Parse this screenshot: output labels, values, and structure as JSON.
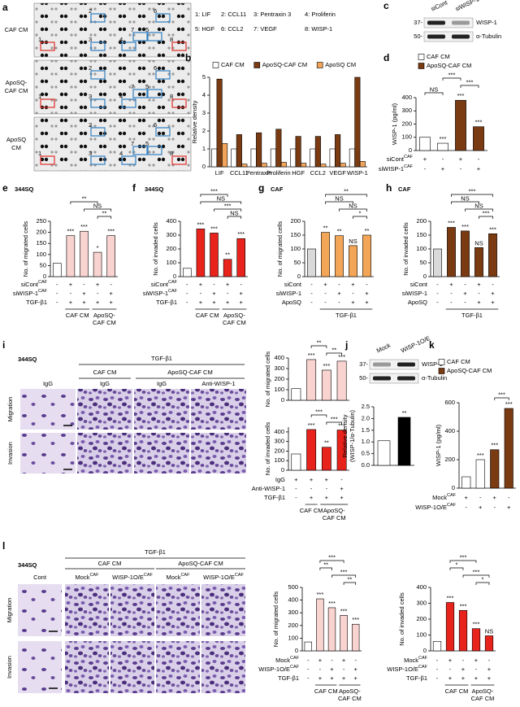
{
  "panel_a": {
    "letter": "a",
    "rows": [
      [
        "CAF CM"
      ],
      [
        "ApoSQ-",
        "CAF CM"
      ],
      [
        "ApoSQ",
        "CM"
      ]
    ],
    "legend": [
      "1: LIF",
      "2: CCL11",
      "3: Pentraxin 3",
      "4: Proliferin",
      "5: HGF",
      "6: CCL2",
      "7: VEGF",
      "8: WISP-1"
    ],
    "box_labels": [
      "1",
      "2",
      "3",
      "4",
      "5",
      "6",
      "7",
      "8"
    ]
  },
  "panel_c": {
    "letter": "c",
    "lanes": [
      "siCont",
      "siWISP-1"
    ],
    "markers": [
      "37-",
      "50-"
    ],
    "bands": [
      "WISP-1",
      "α-Tubulin"
    ]
  },
  "panel_i": {
    "letter": "i",
    "cell": "344SQ",
    "treatment": "TGF-β1",
    "groups": [
      "CAF CM",
      "ApoSQ-CAF CM"
    ],
    "columns": [
      "IgG",
      "IgG",
      "IgG",
      "Anti-WISP-1"
    ],
    "rows": [
      "Migration",
      "Invasion"
    ]
  },
  "panel_j": {
    "letter": "j",
    "lanes": [
      "Mock",
      "WISP-1O/E"
    ],
    "markers": [
      "37-",
      "50-"
    ],
    "bands": [
      "WISP-1",
      "α-Tubulin"
    ]
  },
  "panel_l": {
    "letter": "l",
    "cell": "344SQ",
    "treatment": "TGF-β1",
    "groups": [
      "CAF CM",
      "ApoSQ-CAF CM"
    ],
    "columns": [
      {
        "label": "Cont"
      },
      {
        "label": "Mock",
        "sup": "CAF"
      },
      {
        "label": "WISP-1O/E",
        "sup": "CAF"
      },
      {
        "label": "Mock",
        "sup": "CAF"
      },
      {
        "label": "WISP-1O/E",
        "sup": "CAF"
      }
    ],
    "rows": [
      "Migration",
      "Invasion"
    ]
  },
  "chart_data": [
    {
      "type": "bar",
      "panel": "b",
      "ylabel": "Relative density",
      "ylim": [
        0,
        5
      ],
      "yticks": [
        0,
        1,
        2,
        3,
        4,
        5
      ],
      "categories": [
        "LIF",
        "CCL11",
        "Pentraxin",
        "Proliferin",
        "HGF",
        "CCL2",
        "VEGF",
        "WISP-1"
      ],
      "series": [
        {
          "name": "CAF CM",
          "color": "#ffffff",
          "values": [
            1,
            1,
            1,
            1,
            1,
            1,
            1,
            1
          ]
        },
        {
          "name": "ApoSQ-CAF CM",
          "color": "#7a3b12",
          "values": [
            4.9,
            1.8,
            1.9,
            2.1,
            1.7,
            1.7,
            1.8,
            5.0
          ]
        },
        {
          "name": "ApoSQ CM",
          "color": "#f2a55a",
          "values": [
            1.3,
            0.15,
            0.2,
            0.25,
            0.2,
            0.15,
            0.2,
            0.3
          ]
        }
      ]
    },
    {
      "type": "bar",
      "panel": "d",
      "ylabel": "WISP-1 (pg/ml)",
      "ylim": [
        0,
        400
      ],
      "yticks": [
        0,
        100,
        200,
        300,
        400
      ],
      "values": [
        100,
        55,
        380,
        180
      ],
      "colors": [
        "#ffffff",
        "#ffffff",
        "#7a3b12",
        "#7a3b12"
      ],
      "legend": [
        {
          "name": "CAF CM",
          "color": "#ffffff"
        },
        {
          "name": "ApoSQ-CAF CM",
          "color": "#7a3b12"
        }
      ],
      "annotations": [
        null,
        "***",
        "***",
        "***"
      ],
      "brackets": [
        {
          "between": [
            0,
            1
          ],
          "label": "NS"
        },
        {
          "between": [
            2,
            3
          ],
          "label": "***"
        },
        {
          "between": [
            1,
            2
          ],
          "label": "***"
        }
      ],
      "rows": [
        {
          "label": "siCont",
          "sup": "CAF",
          "signs": [
            "+",
            "-",
            "+",
            "-"
          ]
        },
        {
          "label": "siWISP-1",
          "sup": "CAF",
          "signs": [
            "-",
            "+",
            "-",
            "+"
          ]
        }
      ]
    },
    {
      "type": "bar",
      "panel": "e",
      "title": "344SQ",
      "ylabel": "No. of migrated cells",
      "ylim": [
        0,
        250
      ],
      "yticks": [
        0,
        50,
        100,
        150,
        200,
        250
      ],
      "values": [
        60,
        185,
        205,
        110,
        185
      ],
      "colors": [
        "#ffffff",
        "#f9d3cf",
        "#f9d3cf",
        "#f9d3cf",
        "#f9d3cf"
      ],
      "annotations": [
        null,
        "***",
        "***",
        "*",
        "***"
      ],
      "brackets": [
        {
          "between": [
            3,
            4
          ],
          "label": "**"
        },
        {
          "between": [
            2,
            4
          ],
          "label": "NS"
        },
        {
          "between": [
            1,
            3
          ],
          "label": "**"
        }
      ],
      "rows": [
        {
          "label": "siCont",
          "sup": "CAF",
          "signs": [
            "-",
            "+",
            "-",
            "+",
            "-"
          ]
        },
        {
          "label": "siWISP-1",
          "sup": "CAF",
          "signs": [
            "-",
            "-",
            "+",
            "-",
            "+"
          ]
        },
        {
          "label": "TGF-β1",
          "signs": [
            "-",
            "+",
            "+",
            "+",
            "+"
          ]
        }
      ],
      "groups": [
        {
          "lines": [
            "CAF CM"
          ],
          "bars": [
            1,
            2
          ]
        },
        {
          "lines": [
            "ApoSQ-",
            "CAF CM"
          ],
          "bars": [
            3,
            4
          ]
        }
      ]
    },
    {
      "type": "bar",
      "panel": "f",
      "title": "344SQ",
      "ylabel": "No. of invaded cells",
      "ylim": [
        0,
        400
      ],
      "yticks": [
        0,
        100,
        200,
        300,
        400
      ],
      "values": [
        60,
        345,
        315,
        125,
        275
      ],
      "colors": [
        "#ffffff",
        "#e8231c",
        "#e8231c",
        "#e8231c",
        "#e8231c"
      ],
      "annotations": [
        null,
        "***",
        "***",
        "**",
        "***"
      ],
      "brackets": [
        {
          "between": [
            3,
            4
          ],
          "label": "NS"
        },
        {
          "between": [
            2,
            4
          ],
          "label": "***"
        },
        {
          "between": [
            1,
            4
          ],
          "label": "NS"
        },
        {
          "between": [
            1,
            3
          ],
          "label": "***"
        }
      ],
      "rows": [
        {
          "label": "siCont",
          "sup": "CAF",
          "signs": [
            "-",
            "+",
            "-",
            "+",
            "-"
          ]
        },
        {
          "label": "siWISP-1",
          "sup": "CAF",
          "signs": [
            "-",
            "-",
            "+",
            "-",
            "+"
          ]
        },
        {
          "label": "TGF-β1",
          "signs": [
            "-",
            "+",
            "+",
            "+",
            "+"
          ]
        }
      ],
      "groups": [
        {
          "lines": [
            "CAF CM"
          ],
          "bars": [
            1,
            2
          ]
        },
        {
          "lines": [
            "ApoSQ-",
            "CAF CM"
          ],
          "bars": [
            3,
            4
          ]
        }
      ]
    },
    {
      "type": "bar",
      "panel": "g",
      "title": "CAF",
      "ylabel": "No. of migrated cells",
      "ylim": [
        0,
        200
      ],
      "yticks": [
        0,
        50,
        100,
        150,
        200
      ],
      "values": [
        100,
        160,
        148,
        112,
        150
      ],
      "colors": [
        "#d9d9d9",
        "#f3a657",
        "#f3a657",
        "#f3a657",
        "#f3a657"
      ],
      "annotations": [
        null,
        "**",
        "**",
        "NS",
        "**"
      ],
      "brackets": [
        {
          "between": [
            3,
            4
          ],
          "label": "*"
        },
        {
          "between": [
            2,
            4
          ],
          "label": "NS"
        },
        {
          "between": [
            1,
            3
          ],
          "label": "NS"
        },
        {
          "between": [
            1,
            4
          ],
          "label": "**"
        }
      ],
      "rows": [
        {
          "label": "siCont",
          "signs": [
            "-",
            "+",
            "-",
            "+",
            "-"
          ]
        },
        {
          "label": "siWISP-1",
          "signs": [
            "-",
            "-",
            "+",
            "-",
            "+"
          ]
        },
        {
          "label": "ApoSQ",
          "signs": [
            "-",
            "-",
            "-",
            "+",
            "+"
          ]
        }
      ],
      "groups": [
        {
          "lines": [
            "TGF-β1"
          ],
          "bars": [
            1,
            4
          ]
        }
      ]
    },
    {
      "type": "bar",
      "panel": "h",
      "title": "CAF",
      "ylabel": "No. of invaded cells",
      "ylim": [
        0,
        200
      ],
      "yticks": [
        0,
        50,
        100,
        150,
        200
      ],
      "values": [
        100,
        178,
        165,
        105,
        155
      ],
      "colors": [
        "#d9d9d9",
        "#7a3b12",
        "#7a3b12",
        "#7a3b12",
        "#7a3b12"
      ],
      "annotations": [
        null,
        "***",
        "***",
        "NS",
        "***"
      ],
      "brackets": [
        {
          "between": [
            3,
            4
          ],
          "label": "***"
        },
        {
          "between": [
            2,
            4
          ],
          "label": "NS"
        },
        {
          "between": [
            1,
            3
          ],
          "label": "NS"
        },
        {
          "between": [
            1,
            4
          ],
          "label": "***"
        }
      ],
      "rows": [
        {
          "label": "siCont",
          "signs": [
            "-",
            "+",
            "-",
            "+",
            "-"
          ]
        },
        {
          "label": "siWISP-1",
          "signs": [
            "-",
            "-",
            "+",
            "-",
            "+"
          ]
        },
        {
          "label": "ApoSQ",
          "signs": [
            "-",
            "-",
            "-",
            "+",
            "+"
          ]
        }
      ],
      "groups": [
        {
          "lines": [
            "TGF-β1"
          ],
          "bars": [
            1,
            4
          ]
        }
      ]
    },
    {
      "type": "bar",
      "ylabel": "No. of migrated cells",
      "ylim": [
        0,
        400
      ],
      "yticks": [
        0,
        100,
        200,
        300,
        400
      ],
      "values": [
        110,
        385,
        285,
        370
      ],
      "colors": [
        "#ffffff",
        "#f9d3cf",
        "#f9d3cf",
        "#f9d3cf"
      ],
      "annotations": [
        null,
        "***",
        "***",
        "***"
      ],
      "brackets": [
        {
          "between": [
            2,
            3
          ],
          "label": "**"
        },
        {
          "between": [
            1,
            2
          ],
          "label": "**"
        }
      ]
    },
    {
      "type": "bar",
      "ylabel": "No. of invaded cells",
      "ylim": [
        0,
        450
      ],
      "yticks": [
        0,
        100,
        200,
        300,
        400
      ],
      "values": [
        170,
        425,
        240,
        420
      ],
      "colors": [
        "#ffffff",
        "#e8231c",
        "#e8231c",
        "#e8231c"
      ],
      "annotations": [
        null,
        "***",
        "**",
        "***"
      ],
      "brackets": [
        {
          "between": [
            2,
            3
          ],
          "label": "***"
        },
        {
          "between": [
            1,
            2
          ],
          "label": "***"
        }
      ],
      "rows": [
        {
          "label": "IgG",
          "signs": [
            "+",
            "+",
            "+",
            "-"
          ]
        },
        {
          "label": "Anti-WISP-1",
          "signs": [
            "-",
            "-",
            "-",
            "+"
          ]
        },
        {
          "label": "TGF-β1",
          "signs": [
            "-",
            "+",
            "+",
            "+"
          ]
        }
      ],
      "groups": [
        {
          "lines": [
            "CAF CM"
          ],
          "bars": [
            1,
            1
          ]
        },
        {
          "lines": [
            "ApoSQ-",
            "CAF CM"
          ],
          "bars": [
            2,
            3
          ]
        }
      ]
    },
    {
      "type": "bar",
      "ylabel": [
        "Relative density",
        "(WISP-1/α-Tubulin)"
      ],
      "ylim": [
        0,
        2.5
      ],
      "yticks": [
        {
          "value": 0,
          "label": "0.0"
        },
        {
          "value": 0.5,
          "label": "0.5"
        },
        {
          "value": 1,
          "label": "1.0"
        },
        {
          "value": 1.5,
          "label": "1.5"
        },
        {
          "value": 2,
          "label": "2.0"
        },
        {
          "value": 2.5,
          "label": "2.5"
        }
      ],
      "values": [
        1.05,
        2.05
      ],
      "colors": [
        "#ffffff",
        "#000000"
      ],
      "annotations": [
        null,
        "**"
      ]
    },
    {
      "type": "bar",
      "panel": "k",
      "ylabel": "WISP-1 (pg/ml)",
      "ylim": [
        0,
        600
      ],
      "yticks": [
        0,
        200,
        400,
        600
      ],
      "values": [
        80,
        200,
        270,
        560
      ],
      "colors": [
        "#ffffff",
        "#ffffff",
        "#7a3b12",
        "#7a3b12"
      ],
      "legend": [
        {
          "name": "CAF CM",
          "color": "#ffffff"
        },
        {
          "name": "ApoSQ-CAF CM",
          "color": "#7a3b12"
        }
      ],
      "annotations": [
        null,
        "***",
        "***",
        "***"
      ],
      "brackets": [
        {
          "between": [
            2,
            3
          ],
          "label": "***"
        }
      ],
      "rows": [
        {
          "label": "Mock",
          "sup": "CAF",
          "signs": [
            "+",
            "-",
            "+",
            "-"
          ]
        },
        {
          "label": "WISP-1O/E",
          "sup": "CAF",
          "signs": [
            "-",
            "+",
            "-",
            "+"
          ]
        }
      ]
    },
    {
      "type": "bar",
      "ylabel": "No. of migrated cells",
      "ylim": [
        0,
        500
      ],
      "yticks": [
        0,
        100,
        200,
        300,
        400,
        500
      ],
      "values": [
        70,
        410,
        340,
        280,
        210
      ],
      "colors": [
        "#ffffff",
        "#f9d3cf",
        "#f9d3cf",
        "#f9d3cf",
        "#f9d3cf"
      ],
      "annotations": [
        null,
        "***",
        "***",
        "***",
        "***"
      ],
      "brackets": [
        {
          "between": [
            3,
            4
          ],
          "label": "**"
        },
        {
          "between": [
            2,
            4
          ],
          "label": "***"
        },
        {
          "between": [
            1,
            2
          ],
          "label": "**"
        },
        {
          "between": [
            1,
            3
          ],
          "label": "***"
        }
      ],
      "rows": [
        {
          "label": "Mock",
          "sup": "CAF",
          "signs": [
            "-",
            "+",
            "-",
            "+",
            "-"
          ]
        },
        {
          "label": "WISP-1O/E",
          "sup": "CAF",
          "signs": [
            "-",
            "-",
            "+",
            "-",
            "+"
          ]
        },
        {
          "label": "TGF-β1",
          "signs": [
            "-",
            "+",
            "+",
            "+",
            "+"
          ]
        }
      ],
      "groups": [
        {
          "lines": [
            "CAF CM"
          ],
          "bars": [
            1,
            2
          ]
        },
        {
          "lines": [
            "ApoSQ-",
            "CAF CM"
          ],
          "bars": [
            3,
            4
          ]
        }
      ]
    },
    {
      "type": "bar",
      "ylabel": "No. of invaded cells",
      "ylim": [
        0,
        400
      ],
      "yticks": [
        0,
        100,
        200,
        300,
        400
      ],
      "values": [
        60,
        305,
        255,
        140,
        95
      ],
      "colors": [
        "#ffffff",
        "#e8231c",
        "#e8231c",
        "#e8231c",
        "#e8231c"
      ],
      "annotations": [
        null,
        "***",
        "***",
        "***",
        "NS"
      ],
      "brackets": [
        {
          "between": [
            3,
            4
          ],
          "label": "*"
        },
        {
          "between": [
            2,
            4
          ],
          "label": "***"
        },
        {
          "between": [
            1,
            2
          ],
          "label": "*"
        },
        {
          "between": [
            1,
            3
          ],
          "label": "***"
        }
      ],
      "rows": [
        {
          "label": "Mock",
          "sup": "CAF",
          "signs": [
            "-",
            "+",
            "-",
            "+",
            "-"
          ]
        },
        {
          "label": "WISP-1O/E",
          "sup": "CAF",
          "signs": [
            "-",
            "-",
            "+",
            "-",
            "+"
          ]
        },
        {
          "label": "TGF-β1",
          "signs": [
            "-",
            "+",
            "+",
            "+",
            "+"
          ]
        }
      ],
      "groups": [
        {
          "lines": [
            "CAF CM"
          ],
          "bars": [
            1,
            2
          ]
        },
        {
          "lines": [
            "ApoSQ-",
            "CAF CM"
          ],
          "bars": [
            3,
            4
          ]
        }
      ]
    }
  ]
}
